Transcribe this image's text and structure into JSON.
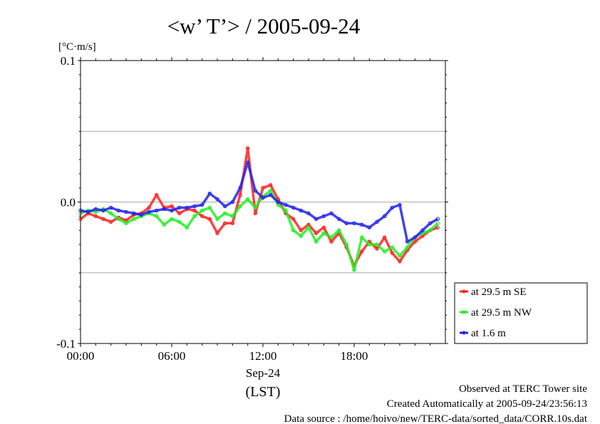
{
  "colors": {
    "series_29_5_se": "#ff2020",
    "series_29_5_nw": "#22ee22",
    "series_1_6": "#2222ee",
    "gridline": "#aaaaaa",
    "axis": "#000000"
  },
  "footer": {
    "line1": "Observed at TERC Tower site",
    "line2": "Created Automatically at 2005-09-24/23:56:13",
    "line3": "Data source : /home/hoivo/new/TERC-data/sorted_data/CORR.10s.dat"
  },
  "chart_data": {
    "type": "line",
    "title": "<w’ T’> / 2005-09-24",
    "ylabel": "[°C·m/s]",
    "xlabel": "(LST)",
    "date_label": "Sep-24",
    "ylim": [
      -0.1,
      0.1
    ],
    "xlim": [
      0,
      24
    ],
    "grid": true,
    "legend_position": "bottom-right",
    "y_ticks": [
      {
        "value": 0.1,
        "label": "0.1"
      },
      {
        "value": 0.0,
        "label": "0.0"
      },
      {
        "value": -0.1,
        "label": "-0.1"
      }
    ],
    "x_ticks": [
      {
        "value": 0,
        "label": "00:00"
      },
      {
        "value": 6,
        "label": "06:00"
      },
      {
        "value": 12,
        "label": "12:00"
      },
      {
        "value": 18,
        "label": "18:00"
      }
    ],
    "series": [
      {
        "name": "at 29.5 m SE",
        "color": "#ff2020",
        "x": [
          0,
          0.5,
          1,
          1.5,
          2,
          2.5,
          3,
          3.5,
          4,
          4.5,
          5,
          5.5,
          6,
          6.5,
          7,
          7.5,
          8,
          8.5,
          9,
          9.5,
          10,
          10.5,
          11,
          11.5,
          12,
          12.5,
          13,
          13.5,
          14,
          14.5,
          15,
          15.5,
          16,
          16.5,
          17,
          17.5,
          18,
          18.5,
          19,
          19.5,
          20,
          20.5,
          21,
          21.5,
          22,
          22.5,
          23,
          23.5
        ],
        "y": [
          -0.012,
          -0.008,
          -0.01,
          -0.012,
          -0.014,
          -0.011,
          -0.013,
          -0.009,
          -0.008,
          -0.004,
          0.005,
          -0.004,
          -0.003,
          -0.008,
          -0.005,
          -0.006,
          -0.01,
          -0.012,
          -0.022,
          -0.015,
          -0.015,
          0.005,
          0.038,
          -0.008,
          0.01,
          0.012,
          0.002,
          -0.008,
          -0.012,
          -0.02,
          -0.016,
          -0.022,
          -0.018,
          -0.028,
          -0.022,
          -0.032,
          -0.045,
          -0.035,
          -0.028,
          -0.033,
          -0.025,
          -0.036,
          -0.042,
          -0.034,
          -0.028,
          -0.024,
          -0.02,
          -0.018
        ]
      },
      {
        "name": "at 29.5 m NW",
        "color": "#22ee22",
        "x": [
          0,
          0.5,
          1,
          1.5,
          2,
          2.5,
          3,
          3.5,
          4,
          4.5,
          5,
          5.5,
          6,
          6.5,
          7,
          7.5,
          8,
          8.5,
          9,
          9.5,
          10,
          10.5,
          11,
          11.5,
          12,
          12.5,
          13,
          13.5,
          14,
          14.5,
          15,
          15.5,
          16,
          16.5,
          17,
          17.5,
          18,
          18.5,
          19,
          19.5,
          20,
          20.5,
          21,
          21.5,
          22,
          22.5,
          23,
          23.5
        ],
        "y": [
          -0.008,
          -0.006,
          -0.007,
          -0.005,
          -0.008,
          -0.012,
          -0.015,
          -0.012,
          -0.01,
          -0.008,
          -0.01,
          -0.016,
          -0.012,
          -0.014,
          -0.018,
          -0.01,
          -0.006,
          -0.004,
          -0.012,
          -0.008,
          -0.01,
          -0.003,
          0.002,
          -0.004,
          0.004,
          0.008,
          -0.002,
          -0.006,
          -0.02,
          -0.024,
          -0.018,
          -0.028,
          -0.022,
          -0.025,
          -0.02,
          -0.03,
          -0.048,
          -0.025,
          -0.03,
          -0.03,
          -0.035,
          -0.032,
          -0.038,
          -0.032,
          -0.025,
          -0.022,
          -0.02,
          -0.015
        ]
      },
      {
        "name": "at 1.6 m",
        "color": "#2222ee",
        "x": [
          0,
          0.5,
          1,
          1.5,
          2,
          2.5,
          3,
          3.5,
          4,
          4.5,
          5,
          5.5,
          6,
          6.5,
          7,
          7.5,
          8,
          8.5,
          9,
          9.5,
          10,
          10.5,
          11,
          11.5,
          12,
          12.5,
          13,
          13.5,
          14,
          14.5,
          15,
          15.5,
          16,
          16.5,
          17,
          17.5,
          18,
          18.5,
          19,
          19.5,
          20,
          20.5,
          21,
          21.5,
          22,
          22.5,
          23,
          23.5
        ],
        "y": [
          -0.006,
          -0.007,
          -0.005,
          -0.006,
          -0.004,
          -0.006,
          -0.007,
          -0.008,
          -0.009,
          -0.007,
          -0.006,
          -0.005,
          -0.006,
          -0.004,
          -0.004,
          -0.003,
          -0.002,
          0.006,
          0.002,
          -0.003,
          0.0,
          0.01,
          0.028,
          0.008,
          0.003,
          0.005,
          0.0,
          -0.002,
          -0.004,
          -0.006,
          -0.008,
          -0.012,
          -0.01,
          -0.008,
          -0.012,
          -0.015,
          -0.015,
          -0.016,
          -0.018,
          -0.014,
          -0.01,
          -0.004,
          -0.002,
          -0.028,
          -0.025,
          -0.02,
          -0.015,
          -0.012
        ]
      }
    ]
  }
}
